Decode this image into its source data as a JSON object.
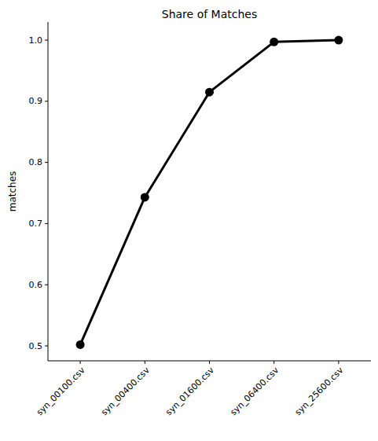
{
  "chart_data": {
    "type": "line",
    "title": "Share of Matches",
    "y_label": "matches",
    "categories": [
      "syn_00100.csv",
      "syn_00400.csv",
      "syn_01600.csv",
      "syn_06400.csv",
      "syn_25600.csv"
    ],
    "values": [
      0.502,
      0.743,
      0.915,
      0.997,
      1.0
    ],
    "color": "#000000",
    "marker": "circle",
    "line_style": "solid",
    "ylim": [
      0.4756,
      1.0296
    ],
    "yticks": [
      0.5,
      0.6,
      0.7,
      0.8,
      0.9,
      {
        "value": 1.0,
        "label": "1.0"
      }
    ],
    "grid": false
  }
}
